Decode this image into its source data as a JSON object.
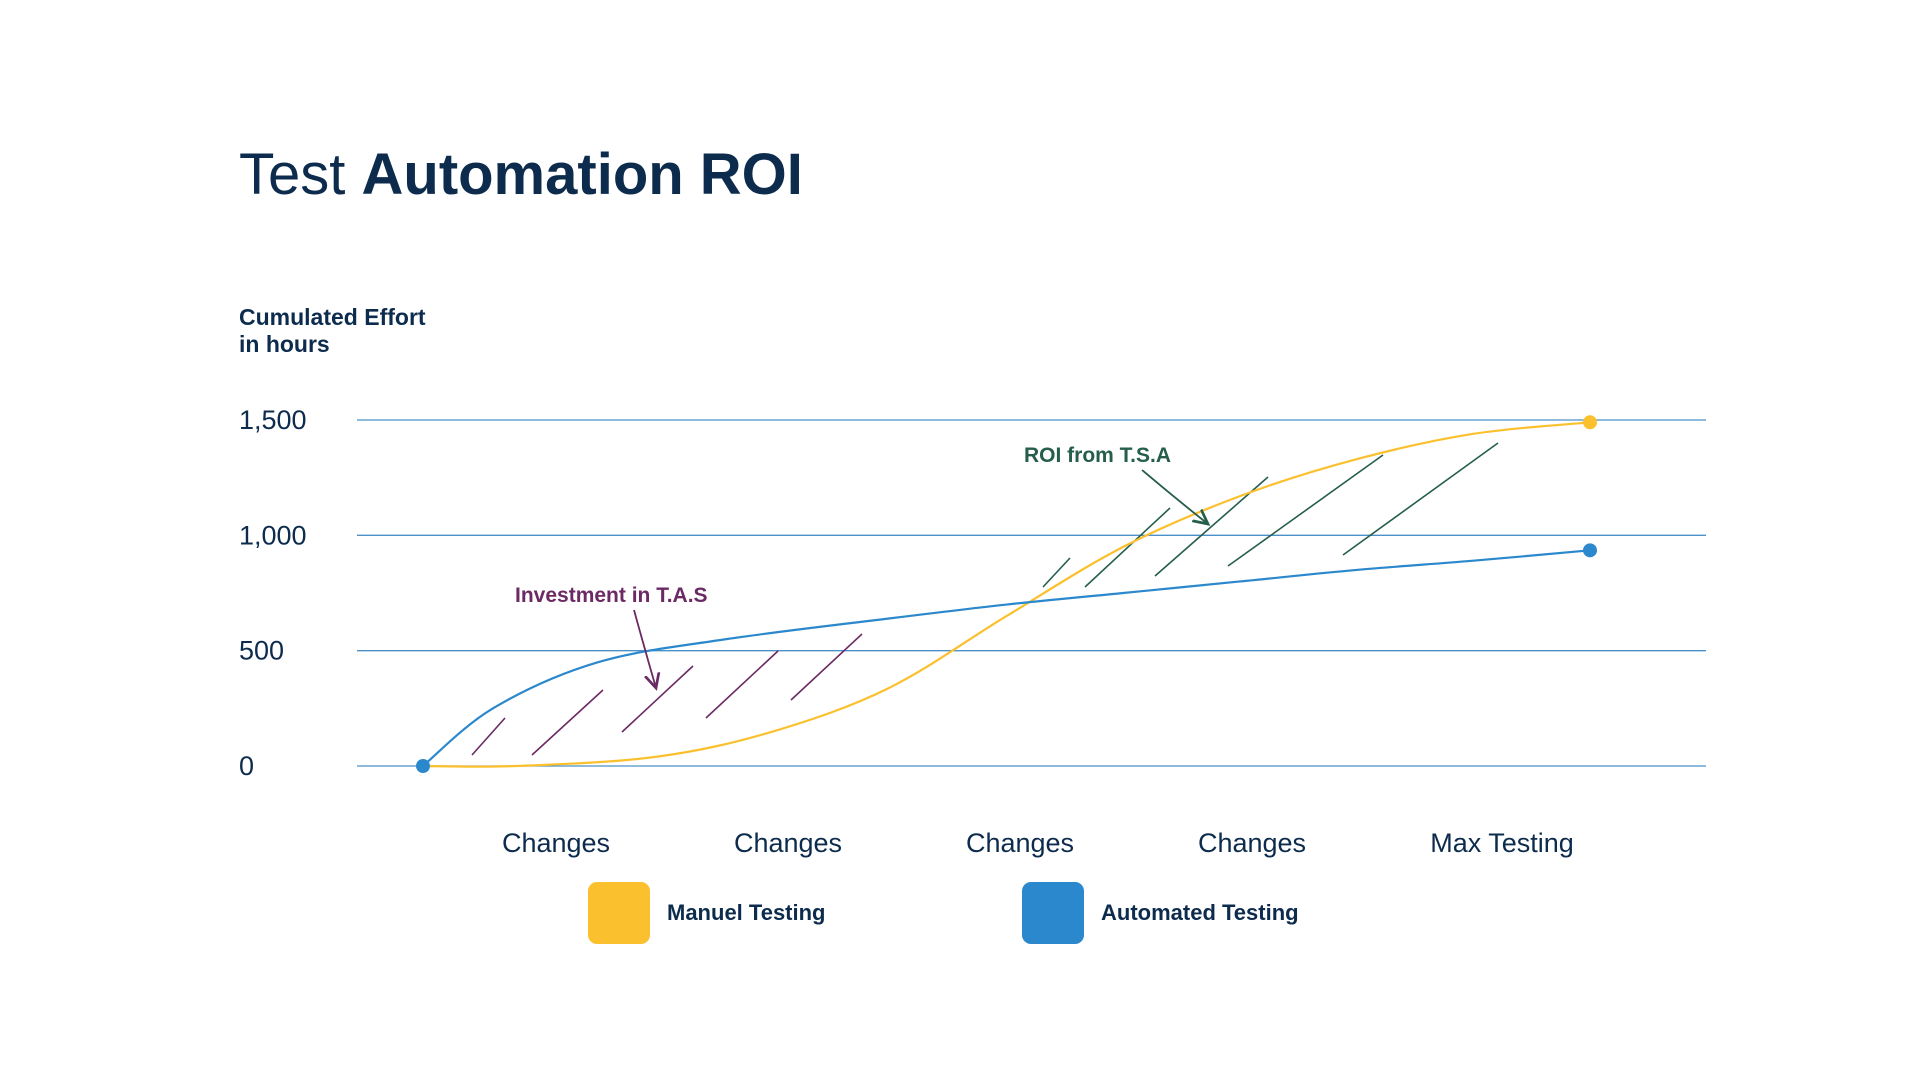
{
  "title": {
    "light": "Test",
    "bold": "Automation ROI"
  },
  "chart_data": {
    "type": "line",
    "ylabel_lines": [
      "Cumulated Effort",
      "in hours"
    ],
    "ylim": [
      0,
      1500
    ],
    "yticks": [
      0,
      500,
      1000,
      1500
    ],
    "ytick_labels": [
      "0",
      "500",
      "1,000",
      "1,500"
    ],
    "grid": true,
    "categories": [
      "Changes",
      "Changes",
      "Changes",
      "Changes",
      "Max Testing"
    ],
    "series": [
      {
        "name": "Manuel Testing",
        "color": "#fbc02d",
        "x": [
          0,
          0.4,
          1,
          1.5,
          2,
          2.5,
          3,
          3.5,
          4,
          4.5,
          5
        ],
        "y": [
          0,
          0,
          40,
          150,
          340,
          650,
          950,
          1170,
          1330,
          1440,
          1490
        ]
      },
      {
        "name": "Automated Testing",
        "color": "#2b88cc",
        "x": [
          0,
          0.3,
          0.75,
          1.3,
          2,
          2.5,
          3,
          3.5,
          4,
          4.5,
          5
        ],
        "y": [
          0,
          250,
          450,
          550,
          640,
          700,
          750,
          800,
          850,
          890,
          935
        ]
      }
    ],
    "annotations": [
      {
        "text": "Investment in T.A.S",
        "color": "#6b2a63"
      },
      {
        "text": "ROI from T.S.A",
        "color": "#255e4a"
      }
    ],
    "legend_position": "bottom"
  }
}
